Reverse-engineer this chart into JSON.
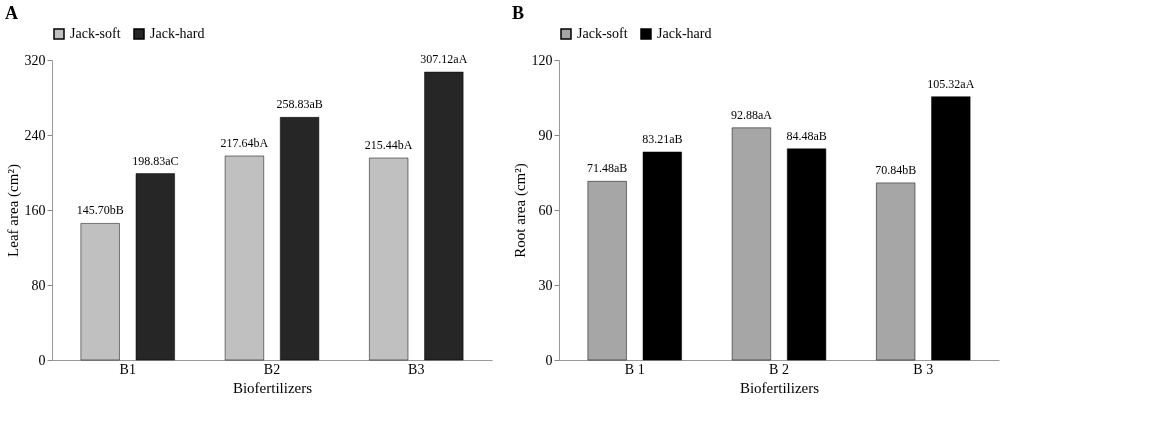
{
  "chart_data": [
    {
      "type": "bar",
      "title": "A",
      "xlabel": "Biofertilizers",
      "ylabel": "Leaf area (cm²)",
      "categories": [
        "B1",
        "B2",
        "B3"
      ],
      "ylim": [
        0,
        320
      ],
      "yticks": [
        0,
        80,
        160,
        240,
        320
      ],
      "legend": "top",
      "series": [
        {
          "name": "Jack-soft",
          "color": "#c0c0c0",
          "values": [
            145.7,
            217.64,
            215.44
          ],
          "value_labels": [
            "145.70bB",
            "217.64bA",
            "215.44bA"
          ]
        },
        {
          "name": "Jack-hard",
          "color": "#262626",
          "values": [
            198.83,
            258.83,
            307.12
          ],
          "value_labels": [
            "198.83aC",
            "258.83aB",
            "307.12aA"
          ]
        }
      ]
    },
    {
      "type": "bar",
      "title": "B",
      "xlabel": "Biofertilizers",
      "ylabel": "Root area (cm²)",
      "categories": [
        "B 1",
        "B 2",
        "B 3"
      ],
      "ylim": [
        0,
        120
      ],
      "yticks": [
        0,
        30,
        60,
        90,
        120
      ],
      "legend": "top",
      "series": [
        {
          "name": "Jack-soft",
          "color": "#a6a6a6",
          "values": [
            71.48,
            92.88,
            70.84
          ],
          "value_labels": [
            "71.48aB",
            "92.88aA",
            "70.84bB"
          ]
        },
        {
          "name": "Jack-hard",
          "color": "#000000",
          "values": [
            83.21,
            84.48,
            105.32
          ],
          "value_labels": [
            "83.21aB",
            "84.48aB",
            "105.32aA"
          ]
        }
      ]
    }
  ]
}
